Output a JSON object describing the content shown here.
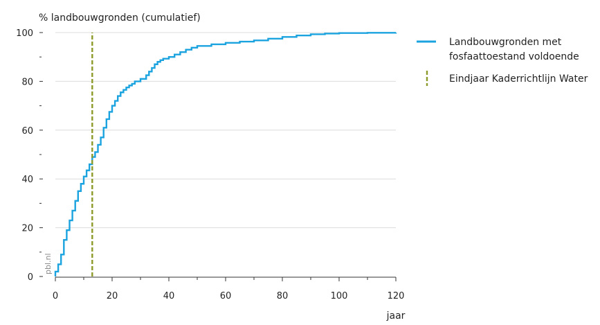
{
  "chart_data": {
    "type": "line",
    "title": "",
    "ylabel": "% landbouwgronden (cumulatief)",
    "xlabel": "jaar",
    "xlim": [
      0,
      120
    ],
    "ylim": [
      0,
      100
    ],
    "xticks": [
      0,
      20,
      40,
      60,
      80,
      100,
      120
    ],
    "yticks": [
      0,
      20,
      40,
      60,
      80,
      100
    ],
    "xtick_labels": [
      "0",
      "20",
      "40",
      "60",
      "80",
      "100",
      "120"
    ],
    "ytick_labels": [
      "0",
      "20",
      "40",
      "60",
      "80",
      "100"
    ],
    "grid": "horizontal",
    "legend_position": "right",
    "source_label": "pbl.nl",
    "series": [
      {
        "name": "Landbouwgronden met fosfaattoestand voldoende",
        "style": "step",
        "color": "#1aa3df",
        "x": [
          0,
          1,
          2,
          3,
          4,
          5,
          6,
          7,
          8,
          9,
          10,
          11,
          12,
          13,
          14,
          15,
          16,
          17,
          18,
          19,
          20,
          21,
          22,
          23,
          24,
          25,
          26,
          27,
          28,
          30,
          32,
          33,
          34,
          35,
          36,
          37,
          38,
          40,
          42,
          44,
          46,
          48,
          50,
          55,
          60,
          65,
          70,
          75,
          80,
          85,
          90,
          95,
          100,
          110,
          120
        ],
        "y": [
          2,
          5,
          9,
          15,
          19,
          23,
          27,
          31,
          35,
          38,
          41,
          43.5,
          46,
          49,
          51,
          54,
          57,
          61,
          64.5,
          67.5,
          70,
          72,
          74,
          75.5,
          76.5,
          77.5,
          78.3,
          79,
          80,
          81,
          82.5,
          84,
          85.5,
          87,
          88,
          88.7,
          89.3,
          90,
          91,
          92,
          93,
          93.8,
          94.5,
          95.2,
          95.8,
          96.3,
          96.8,
          97.5,
          98.2,
          98.8,
          99.3,
          99.6,
          99.8,
          99.9,
          100
        ]
      },
      {
        "name": "Eindjaar Kaderrichtlijn Water",
        "style": "vertical-dashed",
        "color": "#8c9a2a",
        "x": [
          13,
          13
        ],
        "y": [
          0,
          100
        ]
      }
    ]
  }
}
